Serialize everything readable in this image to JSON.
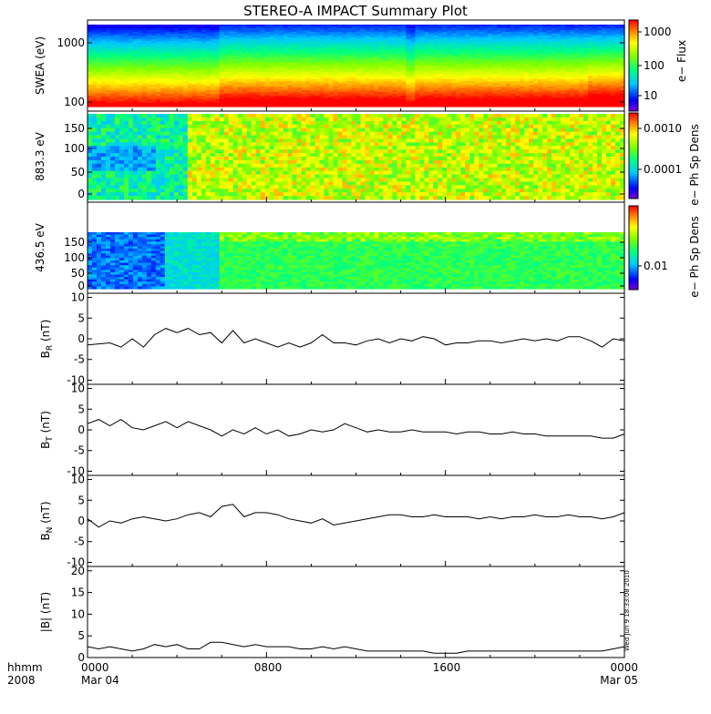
{
  "title": "STEREO-A IMPACT Summary Plot",
  "time_axis": {
    "row1": [
      "0000",
      "0800",
      "1600",
      "0000"
    ],
    "row2": [
      "Mar 04",
      "",
      "",
      "Mar 05"
    ],
    "corner_top": "hhmm",
    "corner_bottom": "2008"
  },
  "timestamp": "Wed Jun 9 18:33:08 2010",
  "chart_data": [
    {
      "type": "heatmap",
      "ylabel": "SWEA (eV)",
      "yticks": [
        "1000",
        "100"
      ],
      "yscale": "log",
      "ylim": [
        90,
        2000
      ],
      "colorbar": {
        "label": "e− Flux",
        "ticks": [
          "1000",
          "100",
          "10"
        ],
        "scale": "log"
      }
    },
    {
      "type": "heatmap",
      "ylabel": "883.3 eV",
      "yticks": [
        "150",
        "100",
        "50",
        "0"
      ],
      "ylim": [
        0,
        180
      ],
      "colorbar": {
        "label": "e− Ph Sp Dens",
        "ticks": [
          "0.0010",
          "0.0001"
        ],
        "scale": "log"
      }
    },
    {
      "type": "heatmap",
      "ylabel": "436.5 eV",
      "yticks": [
        "150",
        "100",
        "50",
        "0"
      ],
      "ylim": [
        0,
        180
      ],
      "colorbar": {
        "label": "e− Ph Sp Dens",
        "ticks": [
          "0.01"
        ],
        "scale": "log"
      }
    },
    {
      "type": "line",
      "ylabel_main": "B",
      "ylabel_sub": "R",
      "ylabel_unit": " (nT)",
      "yticks": [
        "10",
        "5",
        "0",
        "-5",
        "-10"
      ],
      "ylim": [
        -11,
        11
      ],
      "x": [
        0,
        1,
        1.5,
        2,
        2.5,
        3,
        3.5,
        4,
        4.5,
        5,
        5.5,
        6,
        6.5,
        7,
        7.5,
        8,
        8.5,
        9,
        9.5,
        10,
        10.5,
        11,
        11.5,
        12,
        12.5,
        13,
        13.5,
        14,
        14.5,
        15,
        15.5,
        16,
        16.5,
        17,
        17.5,
        18,
        18.5,
        19,
        19.5,
        20,
        20.5,
        21,
        21.5,
        22,
        22.5,
        23,
        23.5,
        24
      ],
      "values": [
        -1.5,
        -1,
        -2,
        0,
        -2,
        1,
        2.5,
        1.5,
        2.5,
        1,
        1.5,
        -1,
        2,
        -1,
        0,
        -1,
        -2,
        -1,
        -2,
        -1,
        1,
        -1,
        -1,
        -1.5,
        -0.5,
        0,
        -1,
        0,
        -0.5,
        0.5,
        0,
        -1.5,
        -1,
        -1,
        -0.5,
        -0.5,
        -1,
        -0.5,
        0,
        -0.5,
        0,
        -0.5,
        0.5,
        0.5,
        -0.5,
        -2,
        0,
        -0.5
      ]
    },
    {
      "type": "line",
      "ylabel_main": "B",
      "ylabel_sub": "T",
      "ylabel_unit": " (nT)",
      "yticks": [
        "10",
        "5",
        "0",
        "-5",
        "-10"
      ],
      "ylim": [
        -11,
        11
      ],
      "x": [
        0,
        0.5,
        1,
        1.5,
        2,
        2.5,
        3,
        3.5,
        4,
        4.5,
        5,
        5.5,
        6,
        6.5,
        7,
        7.5,
        8,
        8.5,
        9,
        9.5,
        10,
        10.5,
        11,
        11.5,
        12,
        12.5,
        13,
        13.5,
        14,
        14.5,
        15,
        15.5,
        16,
        16.5,
        17,
        17.5,
        18,
        18.5,
        19,
        19.5,
        20,
        20.5,
        21,
        21.5,
        22,
        22.5,
        23,
        23.5,
        24
      ],
      "values": [
        1.5,
        2.5,
        1,
        2.5,
        0.5,
        0,
        1,
        2,
        0.5,
        2,
        1,
        0,
        -1.5,
        0,
        -1,
        0.5,
        -1,
        0,
        -1.5,
        -1,
        0,
        -0.5,
        0,
        1.5,
        0.5,
        -0.5,
        0,
        -0.5,
        -0.5,
        0,
        -0.5,
        -0.5,
        -0.5,
        -1,
        -0.5,
        -0.5,
        -1,
        -1,
        -0.5,
        -1,
        -1,
        -1.5,
        -1.5,
        -1.5,
        -1.5,
        -1.5,
        -2,
        -2,
        -1
      ]
    },
    {
      "type": "line",
      "ylabel_main": "B",
      "ylabel_sub": "N",
      "ylabel_unit": " (nT)",
      "yticks": [
        "10",
        "5",
        "0",
        "-5",
        "-10"
      ],
      "ylim": [
        -11,
        11
      ],
      "x": [
        0,
        0.5,
        1,
        1.5,
        2,
        2.5,
        3,
        3.5,
        4,
        4.5,
        5,
        5.5,
        6,
        6.5,
        7,
        7.5,
        8,
        8.5,
        9,
        9.5,
        10,
        10.5,
        11,
        11.5,
        12,
        12.5,
        13,
        13.5,
        14,
        14.5,
        15,
        15.5,
        16,
        16.5,
        17,
        17.5,
        18,
        18.5,
        19,
        19.5,
        20,
        20.5,
        21,
        21.5,
        22,
        22.5,
        23,
        23.5,
        24
      ],
      "values": [
        0.5,
        -1.5,
        0,
        -0.5,
        0.5,
        1,
        0.5,
        0,
        0.5,
        1.5,
        2,
        1,
        3.5,
        4,
        1,
        2,
        2,
        1.5,
        0.5,
        0,
        -0.5,
        0.5,
        -1,
        -0.5,
        0,
        0.5,
        1,
        1.5,
        1.5,
        1,
        1,
        1.5,
        1,
        1,
        1,
        0.5,
        1,
        0.5,
        1,
        1,
        1.5,
        1,
        1,
        1.5,
        1,
        1,
        0.5,
        1,
        2
      ]
    },
    {
      "type": "line",
      "ylabel": "|B| (nT)",
      "yticks": [
        "20",
        "15",
        "10",
        "5",
        "0"
      ],
      "ylim": [
        0,
        21
      ],
      "x": [
        0,
        0.5,
        1,
        1.5,
        2,
        2.5,
        3,
        3.5,
        4,
        4.5,
        5,
        5.5,
        6,
        6.5,
        7,
        7.5,
        8,
        8.5,
        9,
        9.5,
        10,
        10.5,
        11,
        11.5,
        12,
        12.5,
        13,
        13.5,
        14,
        14.5,
        15,
        15.5,
        16,
        16.5,
        17,
        17.5,
        18,
        18.5,
        19,
        19.5,
        20,
        20.5,
        21,
        21.5,
        22,
        22.5,
        23,
        23.5,
        24
      ],
      "values": [
        2.5,
        2,
        2.5,
        2,
        1.5,
        2,
        3,
        2.5,
        3,
        2,
        2,
        3.5,
        3.5,
        3,
        2.5,
        3,
        2.5,
        2.5,
        2.5,
        2,
        2,
        2.5,
        2,
        2.5,
        2,
        1.5,
        1.5,
        1.5,
        1.5,
        1.5,
        1.5,
        1,
        1,
        1,
        1.5,
        1.5,
        1.5,
        1.5,
        1.5,
        1.5,
        1.5,
        1.5,
        1.5,
        1.5,
        1.5,
        1.5,
        1.5,
        2,
        2.5
      ]
    }
  ]
}
